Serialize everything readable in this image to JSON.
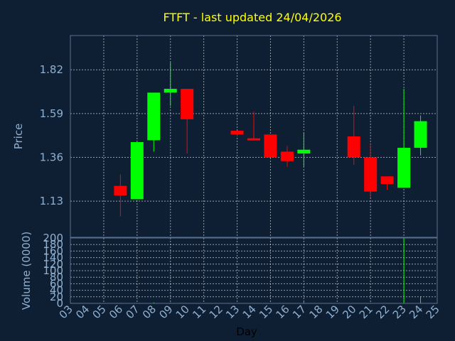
{
  "chart_data": {
    "type": "candlestick",
    "title": "FTFT - last updated 24/04/2026",
    "ylabel_price": "Price",
    "ylabel_volume": "Volume (0000)",
    "xlabel": "Day",
    "price_ylim": [
      0.94,
      2.0
    ],
    "price_yticks": [
      {
        "value": 1.13,
        "label": "1.13"
      },
      {
        "value": 1.36,
        "label": "1.36"
      },
      {
        "value": 1.59,
        "label": "1.59"
      },
      {
        "value": 1.82,
        "label": "1.82"
      }
    ],
    "volume_ylim": [
      0,
      200
    ],
    "volume_yticks": [
      {
        "value": 0,
        "label": "0"
      },
      {
        "value": 20,
        "label": "20"
      },
      {
        "value": 40,
        "label": "40"
      },
      {
        "value": 60,
        "label": "60"
      },
      {
        "value": 80,
        "label": "80"
      },
      {
        "value": 100,
        "label": "100"
      },
      {
        "value": 120,
        "label": "120"
      },
      {
        "value": 140,
        "label": "140"
      },
      {
        "value": 160,
        "label": "160"
      },
      {
        "value": 180,
        "label": "180"
      },
      {
        "value": 200,
        "label": "200"
      }
    ],
    "x_range": [
      3,
      25
    ],
    "x_ticks": [
      "03",
      "04",
      "05",
      "06",
      "07",
      "08",
      "09",
      "10",
      "11",
      "12",
      "13",
      "14",
      "15",
      "16",
      "17",
      "18",
      "19",
      "20",
      "21",
      "22",
      "23",
      "24",
      "25"
    ],
    "candles": [
      {
        "day": 6,
        "open": 1.21,
        "high": 1.27,
        "low": 1.05,
        "close": 1.16
      },
      {
        "day": 7,
        "open": 1.14,
        "high": 1.44,
        "low": 1.14,
        "close": 1.44
      },
      {
        "day": 8,
        "open": 1.45,
        "high": 1.7,
        "low": 1.39,
        "close": 1.7
      },
      {
        "day": 9,
        "open": 1.7,
        "high": 1.86,
        "low": 1.63,
        "close": 1.72
      },
      {
        "day": 10,
        "open": 1.72,
        "high": 1.72,
        "low": 1.38,
        "close": 1.56
      },
      {
        "day": 13,
        "open": 1.5,
        "high": 1.5,
        "low": 1.47,
        "close": 1.48
      },
      {
        "day": 14,
        "open": 1.46,
        "high": 1.6,
        "low": 1.45,
        "close": 1.45
      },
      {
        "day": 15,
        "open": 1.48,
        "high": 1.48,
        "low": 1.36,
        "close": 1.36
      },
      {
        "day": 16,
        "open": 1.39,
        "high": 1.42,
        "low": 1.31,
        "close": 1.34
      },
      {
        "day": 17,
        "open": 1.38,
        "high": 1.49,
        "low": 1.31,
        "close": 1.4
      },
      {
        "day": 20,
        "open": 1.47,
        "high": 1.63,
        "low": 1.32,
        "close": 1.36
      },
      {
        "day": 21,
        "open": 1.36,
        "high": 1.43,
        "low": 1.15,
        "close": 1.18
      },
      {
        "day": 22,
        "open": 1.26,
        "high": 1.26,
        "low": 1.19,
        "close": 1.22
      },
      {
        "day": 23,
        "open": 1.2,
        "high": 1.72,
        "low": 1.2,
        "close": 1.41
      },
      {
        "day": 24,
        "open": 1.41,
        "high": 1.58,
        "low": 1.37,
        "close": 1.55
      }
    ],
    "volume": [
      {
        "day": 6,
        "value": 2,
        "direction": "down"
      },
      {
        "day": 7,
        "value": 1,
        "direction": "up"
      },
      {
        "day": 8,
        "value": 3,
        "direction": "up"
      },
      {
        "day": 9,
        "value": 2,
        "direction": "up"
      },
      {
        "day": 10,
        "value": 1,
        "direction": "down"
      },
      {
        "day": 17,
        "value": 4,
        "direction": "up"
      },
      {
        "day": 20,
        "value": 1,
        "direction": "down"
      },
      {
        "day": 21,
        "value": 2,
        "direction": "down"
      },
      {
        "day": 23,
        "value": 200,
        "direction": "up"
      },
      {
        "day": 24,
        "value": 22,
        "direction": "up"
      }
    ],
    "grid": true,
    "colors": {
      "background": "#0f1f33",
      "up": "#00ff00",
      "down": "#ff0000",
      "title": "#ffff00",
      "labels": "#8fb0d0"
    }
  }
}
